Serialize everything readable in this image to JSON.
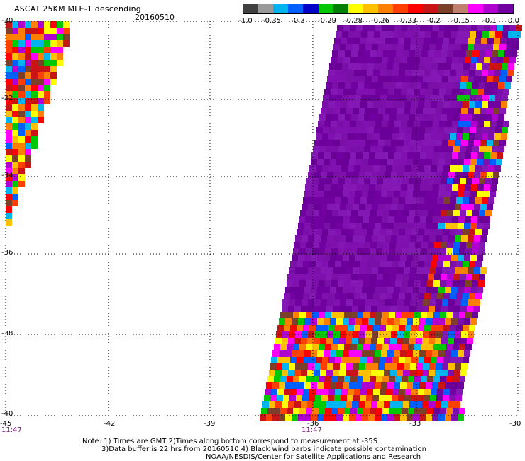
{
  "header": {
    "title": "ASCAT 25KM MLE-1 descending",
    "date": "20160510"
  },
  "colorbar": {
    "colors": [
      "#404040",
      "#9a9a9a",
      "#00b4f0",
      "#0060ff",
      "#0000c8",
      "#00c800",
      "#008000",
      "#ffff00",
      "#ffc000",
      "#ff8000",
      "#ff4000",
      "#ff0000",
      "#c81414",
      "#7b3f2a",
      "#c08070",
      "#ff00ff",
      "#b000d0",
      "#7000a0"
    ],
    "labels": [
      "-1.0",
      "-0.35",
      "-0.3",
      "-0.29",
      "-0.28",
      "-0.26",
      "-0.23",
      "-0.2",
      "-0.15",
      "-0.1",
      "0.0"
    ]
  },
  "axes": {
    "lat_labels": [
      "-30",
      "-32",
      "-34",
      "-36",
      "-38",
      "-40"
    ],
    "lon_labels": [
      "-45",
      "-42",
      "-39",
      "-36",
      "-33",
      "-30"
    ],
    "time_labels": [
      "11:47",
      "11:47"
    ]
  },
  "notes": {
    "line1": "Note: 1) Times are GMT 2)Times along bottom correspond to measurement at -35S",
    "line2": "3)Data buffer is 22 hrs from 20160510 4) Black wind barbs indicate possible contamination",
    "line3": "NOAA/NESDIS/Center for Satellite Applications and Research"
  }
}
